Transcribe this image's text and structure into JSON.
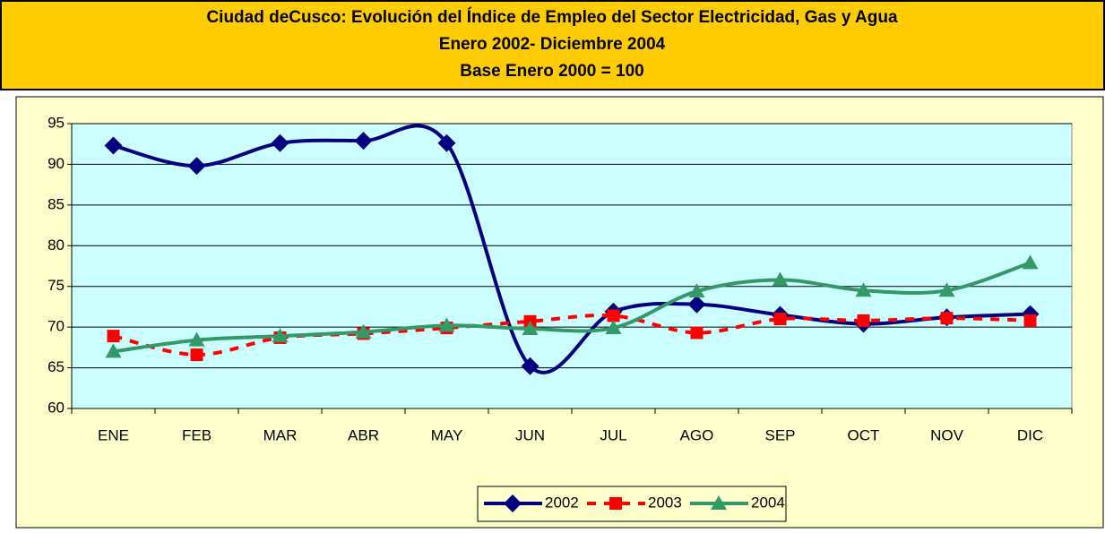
{
  "chart_data": {
    "type": "line",
    "title": "Ciudad deCusco: Evolución del Índice de Empleo del Sector Electricidad, Gas y Agua",
    "subtitle": "Enero 2002- Diciembre 2004",
    "subtitle_2": "Base Enero 2000  =  100",
    "categories": [
      "ENE",
      "FEB",
      "MAR",
      "ABR",
      "MAY",
      "JUN",
      "JUL",
      "AGO",
      "SEP",
      "OCT",
      "NOV",
      "DIC"
    ],
    "series": [
      {
        "name": "2002",
        "color": "#000080",
        "marker": "diamond",
        "dashed": false,
        "values": [
          92.3,
          89.8,
          92.6,
          92.9,
          92.6,
          65.2,
          71.9,
          72.8,
          71.5,
          70.4,
          71.2,
          71.6
        ]
      },
      {
        "name": "2003",
        "color": "#ff0000",
        "marker": "square",
        "dashed": true,
        "values": [
          68.9,
          66.6,
          68.7,
          69.2,
          69.9,
          70.7,
          71.4,
          69.3,
          71.0,
          70.8,
          71.1,
          70.8
        ]
      },
      {
        "name": "2004",
        "color": "#339966",
        "marker": "triangle",
        "dashed": false,
        "values": [
          67.0,
          68.4,
          68.9,
          69.4,
          70.2,
          69.8,
          69.9,
          74.4,
          75.8,
          74.5,
          74.5,
          77.9
        ]
      }
    ],
    "ylim": [
      60,
      95
    ],
    "yticks": [
      60,
      65,
      70,
      75,
      80,
      85,
      90,
      95
    ],
    "grid": true,
    "smooth": true,
    "legend": "bottom"
  }
}
